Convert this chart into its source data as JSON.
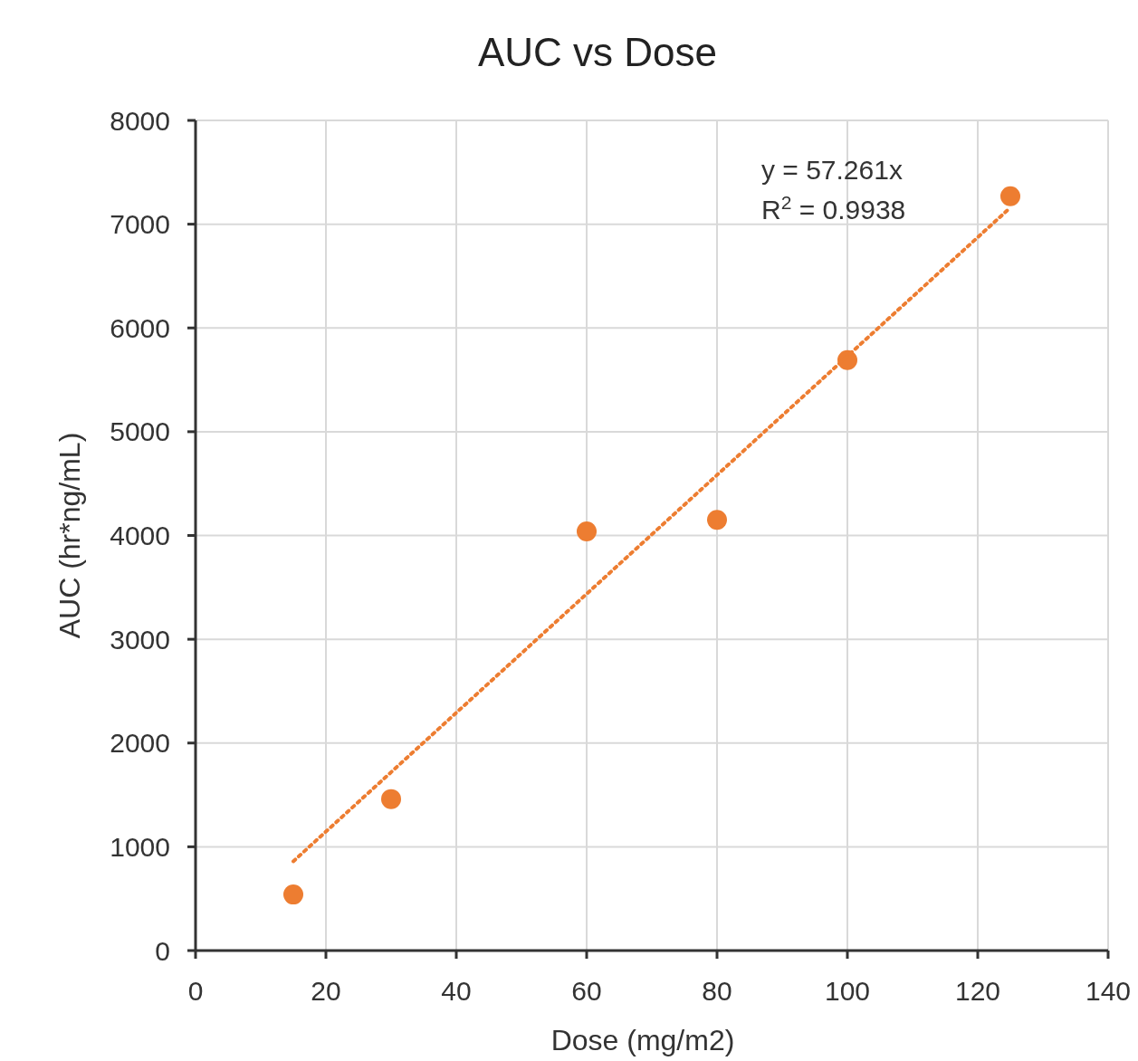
{
  "chart_data": {
    "type": "scatter",
    "title": "AUC vs Dose",
    "xlabel": "Dose (mg/m2)",
    "ylabel": "AUC (hr*ng/mL)",
    "xlim": [
      0,
      140
    ],
    "xticks": [
      0,
      20,
      40,
      60,
      80,
      100,
      120,
      140
    ],
    "ylim": [
      0,
      8000
    ],
    "yticks": [
      0,
      1000,
      2000,
      3000,
      4000,
      5000,
      6000,
      7000,
      8000
    ],
    "grid": true,
    "series": [
      {
        "color": "#ed7d31",
        "marker": "circle",
        "x": [
          15,
          30,
          60,
          80,
          100,
          125
        ],
        "values": [
          540,
          1460,
          4040,
          4150,
          5690,
          7270
        ]
      },
      {
        "type": "line",
        "color": "#ed7d31",
        "marker": "none",
        "line_style": "dotted",
        "x": [
          15,
          125
        ],
        "values": [
          860,
          7160
        ]
      }
    ],
    "annotations": [
      "y = 57.261x",
      "R$^{2}$ = 0.9938"
    ]
  }
}
